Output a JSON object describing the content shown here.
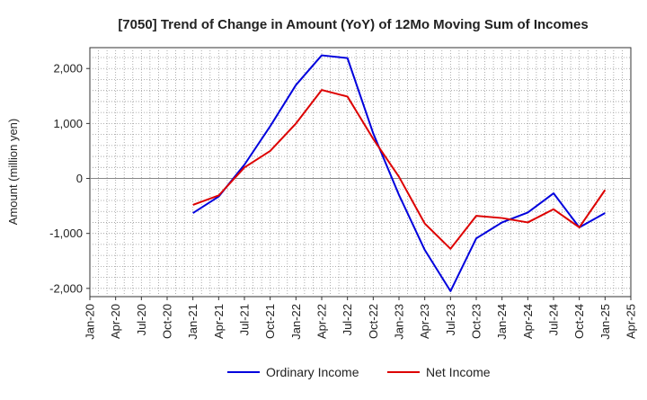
{
  "chart_data": {
    "type": "line",
    "title": "[7050]  Trend of Change in Amount (YoY) of 12Mo Moving Sum of Incomes",
    "xlabel": "",
    "ylabel": "Amount (million yen)",
    "ylim": [
      -2150,
      2380
    ],
    "yticks": [
      2000,
      1000,
      0,
      -1000,
      -2000
    ],
    "ytick_labels": [
      "2,000",
      "1,000",
      "0",
      "-1,000",
      "-2,000"
    ],
    "x_ticks": [
      "2020-01",
      "2020-04",
      "2020-07",
      "2020-10",
      "2021-01",
      "2021-04",
      "2021-07",
      "2021-10",
      "2022-01",
      "2022-04",
      "2022-07",
      "2022-10",
      "2023-01",
      "2023-04",
      "2023-07",
      "2023-10",
      "2024-01",
      "2024-04",
      "2024-07",
      "2024-10",
      "2025-01",
      "2025-04"
    ],
    "xtick_labels": [
      "Jan-20",
      "Apr-20",
      "Jul-20",
      "Oct-20",
      "Jan-21",
      "Apr-21",
      "Jul-21",
      "Oct-21",
      "Jan-22",
      "Apr-22",
      "Jul-22",
      "Oct-22",
      "Jan-23",
      "Apr-23",
      "Jul-23",
      "Oct-23",
      "Jan-24",
      "Apr-24",
      "Jul-24",
      "Oct-24",
      "Jan-25",
      "Apr-25"
    ],
    "grid": true,
    "legend_position": "bottom",
    "x": [
      "2021-01",
      "2021-04",
      "2021-07",
      "2021-10",
      "2022-01",
      "2022-04",
      "2022-07",
      "2022-10",
      "2023-01",
      "2023-04",
      "2023-07",
      "2023-10",
      "2024-01",
      "2024-04",
      "2024-07",
      "2024-10",
      "2025-01"
    ],
    "series": [
      {
        "name": "Ordinary Income",
        "color": "#0000dd",
        "values": [
          -630,
          -330,
          250,
          950,
          1700,
          2240,
          2190,
          820,
          -300,
          -1300,
          -2050,
          -1090,
          -800,
          -620,
          -270,
          -890,
          -630
        ]
      },
      {
        "name": "Net Income",
        "color": "#dd0000",
        "values": [
          -480,
          -310,
          200,
          500,
          1000,
          1610,
          1490,
          720,
          30,
          -820,
          -1280,
          -680,
          -720,
          -800,
          -560,
          -890,
          -210
        ]
      }
    ]
  }
}
